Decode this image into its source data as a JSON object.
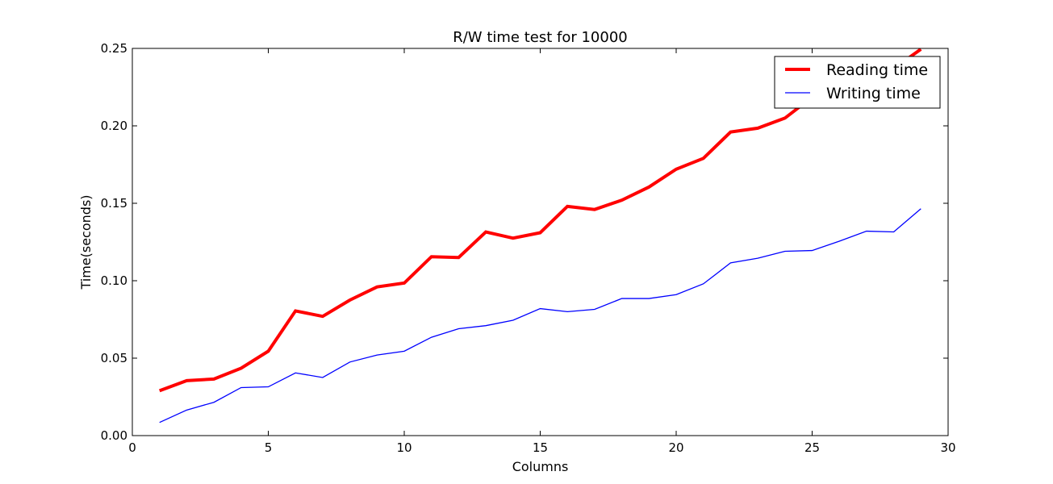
{
  "chart_data": {
    "type": "line",
    "title": "R/W time test for 10000",
    "xlabel": "Columns",
    "ylabel": "Time(seconds)",
    "xlim": [
      0,
      30
    ],
    "ylim": [
      0,
      0.25
    ],
    "xticks": [
      0,
      5,
      10,
      15,
      20,
      25,
      30
    ],
    "yticks": [
      0.0,
      0.05,
      0.1,
      0.15,
      0.2,
      0.25
    ],
    "xtick_labels": [
      "0",
      "5",
      "10",
      "15",
      "20",
      "25",
      "30"
    ],
    "ytick_labels": [
      "0.00",
      "0.05",
      "0.10",
      "0.15",
      "0.20",
      "0.25"
    ],
    "grid": false,
    "legend_position": "top-right",
    "x": [
      1,
      2,
      3,
      4,
      5,
      6,
      7,
      8,
      9,
      10,
      11,
      12,
      13,
      14,
      15,
      16,
      17,
      18,
      19,
      20,
      21,
      22,
      23,
      24,
      25,
      26,
      27,
      28,
      29
    ],
    "series": [
      {
        "name": "Reading time",
        "color": "#ff0000",
        "values": [
          0.029,
          0.0355,
          0.0365,
          0.0435,
          0.0545,
          0.0805,
          0.077,
          0.0875,
          0.096,
          0.0985,
          0.1155,
          0.115,
          0.1315,
          0.1275,
          0.131,
          0.148,
          0.146,
          0.152,
          0.1605,
          0.172,
          0.179,
          0.196,
          0.1985,
          0.205,
          0.2185,
          0.223,
          0.2265,
          0.237,
          0.2495
        ]
      },
      {
        "name": "Writing time",
        "color": "#0000ff",
        "values": [
          0.0085,
          0.0165,
          0.0215,
          0.031,
          0.0315,
          0.0405,
          0.0375,
          0.0475,
          0.052,
          0.0545,
          0.0635,
          0.069,
          0.071,
          0.0745,
          0.082,
          0.08,
          0.0815,
          0.0885,
          0.0885,
          0.091,
          0.098,
          0.1115,
          0.1145,
          0.119,
          0.1195,
          0.1255,
          0.132,
          0.1315,
          0.1465
        ]
      }
    ]
  }
}
